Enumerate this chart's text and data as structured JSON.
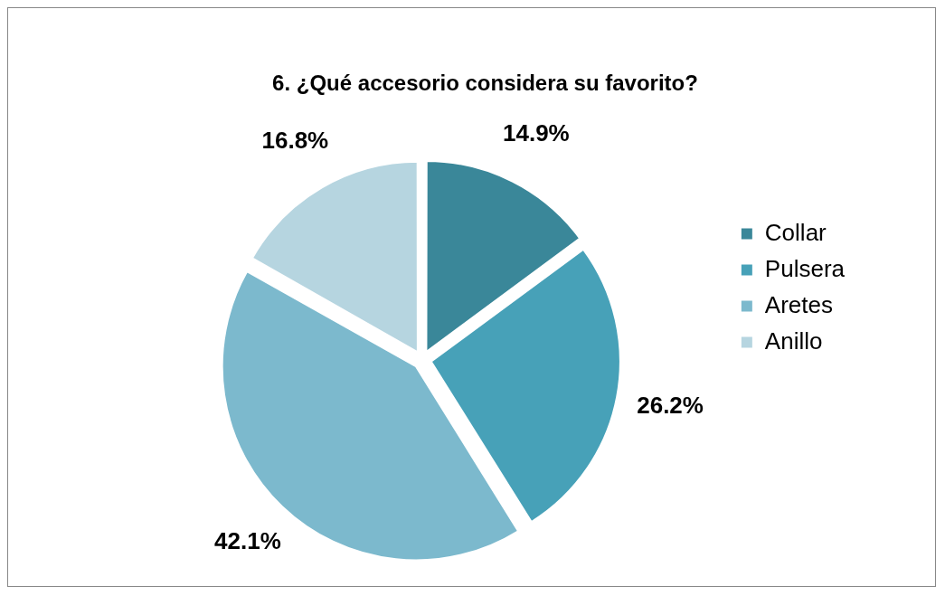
{
  "chart_data": {
    "type": "pie",
    "title": "6. ¿Qué accesorio considera su favorito?",
    "categories": [
      "Collar",
      "Pulsera",
      "Aretes",
      "Anillo"
    ],
    "values": [
      14.9,
      26.2,
      42.1,
      16.8
    ],
    "colors": [
      "#3a8799",
      "#47a1b8",
      "#7cb9cd",
      "#b6d5e0"
    ],
    "value_labels": [
      "14.9%",
      "26.2%",
      "42.1%",
      "16.8%"
    ],
    "legend": "right"
  }
}
